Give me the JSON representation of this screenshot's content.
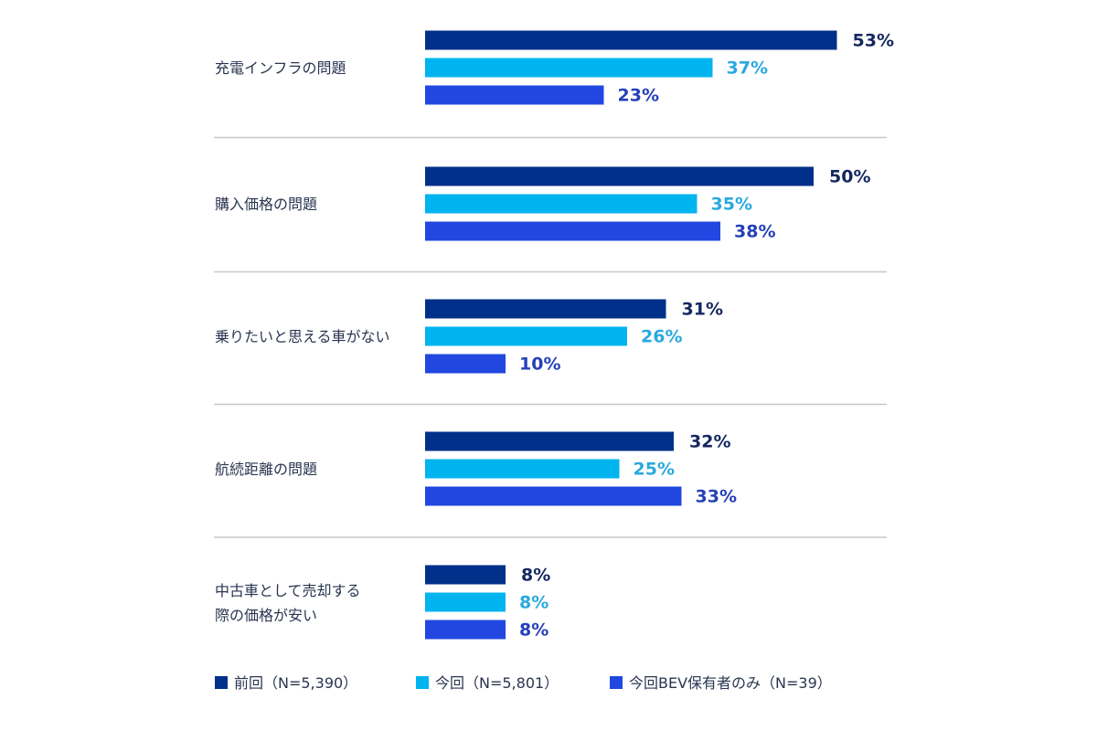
{
  "chart_data": {
    "type": "bar",
    "orientation": "horizontal",
    "categories": [
      [
        "充電インフラの問題"
      ],
      [
        "購入価格の問題"
      ],
      [
        "乗りたいと思える車がない"
      ],
      [
        "航続距離の問題"
      ],
      [
        "中古車として売却する",
        "際の価格が安い"
      ]
    ],
    "series": [
      {
        "name": "前回（N=5,390）",
        "color": "#00308a",
        "label_color": "#14275e",
        "values": [
          53,
          50,
          31,
          32,
          8
        ]
      },
      {
        "name": "今回（N=5,801）",
        "color": "#00b4f0",
        "label_color": "#2aa8e0",
        "values": [
          37,
          35,
          26,
          25,
          8
        ]
      },
      {
        "name": "今回BEV保有者のみ（N=39）",
        "color": "#2147e0",
        "label_color": "#2540b8",
        "values": [
          23,
          38,
          10,
          33,
          8
        ]
      }
    ],
    "value_suffix": "%",
    "legend_position": "bottom",
    "grid": false
  }
}
